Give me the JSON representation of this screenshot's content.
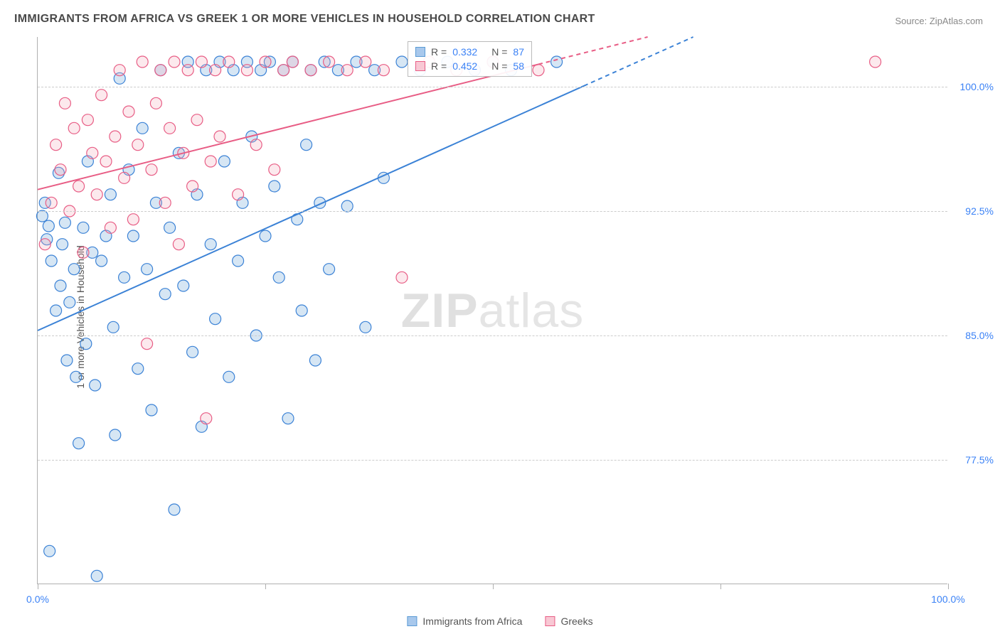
{
  "title": "IMMIGRANTS FROM AFRICA VS GREEK 1 OR MORE VEHICLES IN HOUSEHOLD CORRELATION CHART",
  "source": "Source: ZipAtlas.com",
  "watermark_bold": "ZIP",
  "watermark_light": "atlas",
  "chart": {
    "type": "scatter",
    "ylabel": "1 or more Vehicles in Household",
    "xlim": [
      0,
      100
    ],
    "ylim": [
      70,
      103
    ],
    "ytick_values": [
      77.5,
      85.0,
      92.5,
      100.0
    ],
    "ytick_labels": [
      "77.5%",
      "85.0%",
      "92.5%",
      "100.0%"
    ],
    "xtick_values": [
      0,
      25,
      50,
      75,
      100
    ],
    "xtick_labels": [
      "0.0%",
      "",
      "",
      "",
      "100.0%"
    ],
    "background_color": "#ffffff",
    "grid_color": "#cccccc",
    "axis_color": "#b0b0b0",
    "marker_radius": 8,
    "marker_stroke_width": 1.2,
    "marker_fill_opacity": 0.25,
    "line_width": 2,
    "series": [
      {
        "name": "Immigrants from Africa",
        "color": "#5b9bd5",
        "stroke": "#3b82d6",
        "trend": {
          "x1": 0,
          "y1": 85.3,
          "x2": 72,
          "y2": 103.0,
          "dash_after_x": 60
        },
        "points": [
          [
            0.5,
            92.2
          ],
          [
            0.8,
            93.0
          ],
          [
            1.0,
            90.8
          ],
          [
            1.2,
            91.6
          ],
          [
            1.5,
            89.5
          ],
          [
            1.3,
            72.0
          ],
          [
            2.0,
            86.5
          ],
          [
            2.3,
            94.8
          ],
          [
            2.5,
            88.0
          ],
          [
            2.7,
            90.5
          ],
          [
            3.0,
            91.8
          ],
          [
            3.2,
            83.5
          ],
          [
            3.5,
            87.0
          ],
          [
            4.0,
            89.0
          ],
          [
            4.2,
            82.5
          ],
          [
            4.5,
            78.5
          ],
          [
            5.0,
            91.5
          ],
          [
            5.3,
            84.5
          ],
          [
            5.5,
            95.5
          ],
          [
            6.0,
            90.0
          ],
          [
            6.3,
            82.0
          ],
          [
            6.5,
            70.5
          ],
          [
            7.0,
            89.5
          ],
          [
            7.5,
            91.0
          ],
          [
            8.0,
            93.5
          ],
          [
            8.3,
            85.5
          ],
          [
            8.5,
            79.0
          ],
          [
            9.0,
            100.5
          ],
          [
            9.5,
            88.5
          ],
          [
            10.0,
            95.0
          ],
          [
            10.5,
            91.0
          ],
          [
            11.0,
            83.0
          ],
          [
            11.5,
            97.5
          ],
          [
            12.0,
            89.0
          ],
          [
            12.5,
            80.5
          ],
          [
            13.0,
            93.0
          ],
          [
            13.5,
            101.0
          ],
          [
            14.0,
            87.5
          ],
          [
            14.5,
            91.5
          ],
          [
            15.0,
            74.5
          ],
          [
            15.5,
            96.0
          ],
          [
            16.0,
            88.0
          ],
          [
            16.5,
            101.5
          ],
          [
            17.0,
            84.0
          ],
          [
            17.5,
            93.5
          ],
          [
            18.0,
            79.5
          ],
          [
            18.5,
            101.0
          ],
          [
            19.0,
            90.5
          ],
          [
            19.5,
            86.0
          ],
          [
            20.0,
            101.5
          ],
          [
            20.5,
            95.5
          ],
          [
            21.0,
            82.5
          ],
          [
            21.5,
            101.0
          ],
          [
            22.0,
            89.5
          ],
          [
            22.5,
            93.0
          ],
          [
            23.0,
            101.5
          ],
          [
            23.5,
            97.0
          ],
          [
            24.0,
            85.0
          ],
          [
            24.5,
            101.0
          ],
          [
            25.0,
            91.0
          ],
          [
            25.5,
            101.5
          ],
          [
            26.0,
            94.0
          ],
          [
            26.5,
            88.5
          ],
          [
            27.0,
            101.0
          ],
          [
            27.5,
            80.0
          ],
          [
            28.0,
            101.5
          ],
          [
            28.5,
            92.0
          ],
          [
            29.0,
            86.5
          ],
          [
            29.5,
            96.5
          ],
          [
            30.0,
            101.0
          ],
          [
            30.5,
            83.5
          ],
          [
            31.0,
            93.0
          ],
          [
            31.5,
            101.5
          ],
          [
            32.0,
            89.0
          ],
          [
            33.0,
            101.0
          ],
          [
            34.0,
            92.8
          ],
          [
            35.0,
            101.5
          ],
          [
            36.0,
            85.5
          ],
          [
            37.0,
            101.0
          ],
          [
            38.0,
            94.5
          ],
          [
            40.0,
            101.5
          ],
          [
            42.0,
            101.0
          ],
          [
            45.0,
            101.5
          ],
          [
            48.0,
            101.0
          ],
          [
            50.0,
            101.5
          ],
          [
            52.0,
            101.0
          ],
          [
            57.0,
            101.5
          ]
        ]
      },
      {
        "name": "Greeks",
        "color": "#f4a6b8",
        "stroke": "#e85d85",
        "trend": {
          "x1": 0,
          "y1": 93.8,
          "x2": 67,
          "y2": 103.0,
          "dash_after_x": 55
        },
        "points": [
          [
            0.8,
            90.5
          ],
          [
            1.5,
            93.0
          ],
          [
            2.0,
            96.5
          ],
          [
            2.5,
            95.0
          ],
          [
            3.0,
            99.0
          ],
          [
            3.5,
            92.5
          ],
          [
            4.0,
            97.5
          ],
          [
            4.5,
            94.0
          ],
          [
            5.0,
            90.0
          ],
          [
            5.5,
            98.0
          ],
          [
            6.0,
            96.0
          ],
          [
            6.5,
            93.5
          ],
          [
            7.0,
            99.5
          ],
          [
            7.5,
            95.5
          ],
          [
            8.0,
            91.5
          ],
          [
            8.5,
            97.0
          ],
          [
            9.0,
            101.0
          ],
          [
            9.5,
            94.5
          ],
          [
            10.0,
            98.5
          ],
          [
            10.5,
            92.0
          ],
          [
            11.0,
            96.5
          ],
          [
            11.5,
            101.5
          ],
          [
            12.0,
            84.5
          ],
          [
            12.5,
            95.0
          ],
          [
            13.0,
            99.0
          ],
          [
            13.5,
            101.0
          ],
          [
            14.0,
            93.0
          ],
          [
            14.5,
            97.5
          ],
          [
            15.0,
            101.5
          ],
          [
            15.5,
            90.5
          ],
          [
            16.0,
            96.0
          ],
          [
            16.5,
            101.0
          ],
          [
            17.0,
            94.0
          ],
          [
            17.5,
            98.0
          ],
          [
            18.0,
            101.5
          ],
          [
            18.5,
            80.0
          ],
          [
            19.0,
            95.5
          ],
          [
            19.5,
            101.0
          ],
          [
            20.0,
            97.0
          ],
          [
            21.0,
            101.5
          ],
          [
            22.0,
            93.5
          ],
          [
            23.0,
            101.0
          ],
          [
            24.0,
            96.5
          ],
          [
            25.0,
            101.5
          ],
          [
            26.0,
            95.0
          ],
          [
            27.0,
            101.0
          ],
          [
            28.0,
            101.5
          ],
          [
            30.0,
            101.0
          ],
          [
            32.0,
            101.5
          ],
          [
            34.0,
            101.0
          ],
          [
            36.0,
            101.5
          ],
          [
            38.0,
            101.0
          ],
          [
            40.0,
            88.5
          ],
          [
            43.0,
            101.5
          ],
          [
            46.0,
            101.0
          ],
          [
            50.0,
            101.5
          ],
          [
            55.0,
            101.0
          ],
          [
            92.0,
            101.5
          ]
        ]
      }
    ]
  },
  "annotation": {
    "rows": [
      {
        "swatch_fill": "#a8c8ec",
        "swatch_stroke": "#5b9bd5",
        "r_label": "R =",
        "r_value": "0.332",
        "n_label": "N =",
        "n_value": "87"
      },
      {
        "swatch_fill": "#f8c8d4",
        "swatch_stroke": "#e85d85",
        "r_label": "R =",
        "r_value": "0.452",
        "n_label": "N =",
        "n_value": "58"
      }
    ]
  },
  "legend": {
    "items": [
      {
        "swatch_fill": "#a8c8ec",
        "swatch_stroke": "#5b9bd5",
        "label": "Immigrants from Africa"
      },
      {
        "swatch_fill": "#f8c8d4",
        "swatch_stroke": "#e85d85",
        "label": "Greeks"
      }
    ]
  }
}
